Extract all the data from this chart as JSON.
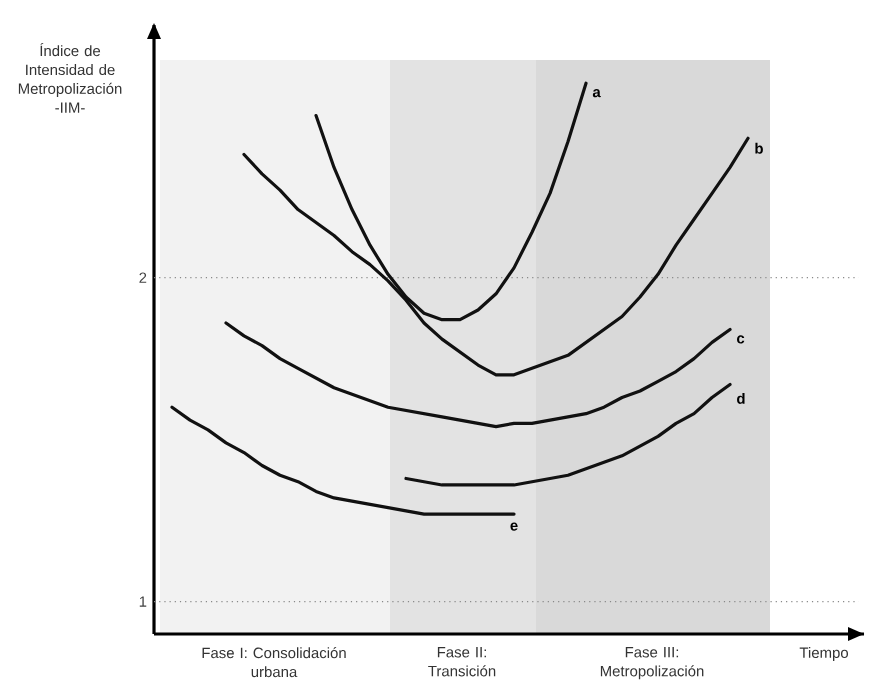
{
  "chart_data": {
    "type": "line",
    "ylabel": "Índice de Intensidad de Metropolización -IIM-",
    "xlabel": "Tiempo",
    "ylim": [
      0.9,
      2.78
    ],
    "yticks": [
      1,
      2
    ],
    "tick_labels": "y",
    "grid": false,
    "marker": "none",
    "line_style": "solid",
    "categories": [
      null,
      null,
      null,
      null,
      null,
      null,
      null,
      null,
      null,
      null,
      null,
      null,
      null,
      null,
      null,
      null,
      null,
      null,
      null,
      null,
      null,
      null,
      null,
      null,
      null,
      null,
      null,
      null,
      null,
      null,
      null,
      null,
      null
    ],
    "annotations": [
      "Fase I: Consolidación urbana",
      "Fase II: Transición",
      "Fase III: Metropolización"
    ],
    "ref_lines": [
      {
        "axis": "y",
        "value": 2,
        "color": "#888888",
        "line_style": "dotted"
      },
      {
        "axis": "y",
        "value": 1,
        "color": "#888888",
        "line_style": "dotted"
      }
    ],
    "series": [
      {
        "name": "a",
        "color": "#111111",
        "values": [
          null,
          null,
          null,
          null,
          null,
          null,
          null,
          null,
          2.5,
          2.34,
          2.21,
          2.1,
          2.01,
          1.94,
          1.89,
          1.87,
          1.87,
          1.9,
          1.95,
          2.03,
          2.14,
          2.26,
          2.42,
          2.6,
          null,
          null,
          null,
          null,
          null,
          null,
          null,
          null,
          null
        ]
      },
      {
        "name": "b",
        "color": "#111111",
        "values": [
          null,
          null,
          null,
          null,
          2.38,
          2.32,
          2.27,
          2.21,
          2.17,
          2.13,
          2.08,
          2.04,
          1.99,
          1.93,
          1.86,
          1.81,
          1.77,
          1.73,
          1.7,
          1.7,
          1.72,
          1.74,
          1.76,
          1.8,
          1.84,
          1.88,
          1.94,
          2.01,
          2.1,
          2.18,
          2.26,
          2.34,
          2.43
        ]
      },
      {
        "name": "c",
        "color": "#111111",
        "values": [
          null,
          null,
          null,
          1.86,
          1.82,
          1.79,
          1.75,
          1.72,
          1.69,
          1.66,
          1.64,
          1.62,
          1.6,
          1.59,
          1.58,
          1.57,
          1.56,
          1.55,
          1.54,
          1.55,
          1.55,
          1.56,
          1.57,
          1.58,
          1.6,
          1.63,
          1.65,
          1.68,
          1.71,
          1.75,
          1.8,
          1.84,
          null
        ]
      },
      {
        "name": "d",
        "color": "#111111",
        "values": [
          null,
          null,
          null,
          null,
          null,
          null,
          null,
          null,
          null,
          null,
          null,
          null,
          null,
          1.38,
          1.37,
          1.36,
          1.36,
          1.36,
          1.36,
          1.36,
          1.37,
          1.38,
          1.39,
          1.41,
          1.43,
          1.45,
          1.48,
          1.51,
          1.55,
          1.58,
          1.63,
          1.67,
          null
        ]
      },
      {
        "name": "e",
        "color": "#111111",
        "values": [
          1.6,
          1.56,
          1.53,
          1.49,
          1.46,
          1.42,
          1.39,
          1.37,
          1.34,
          1.32,
          1.31,
          1.3,
          1.29,
          1.28,
          1.27,
          1.27,
          1.27,
          1.27,
          1.27,
          1.27,
          null,
          null,
          null,
          null,
          null,
          null,
          null,
          null,
          null,
          null,
          null,
          null,
          null
        ]
      }
    ]
  }
}
